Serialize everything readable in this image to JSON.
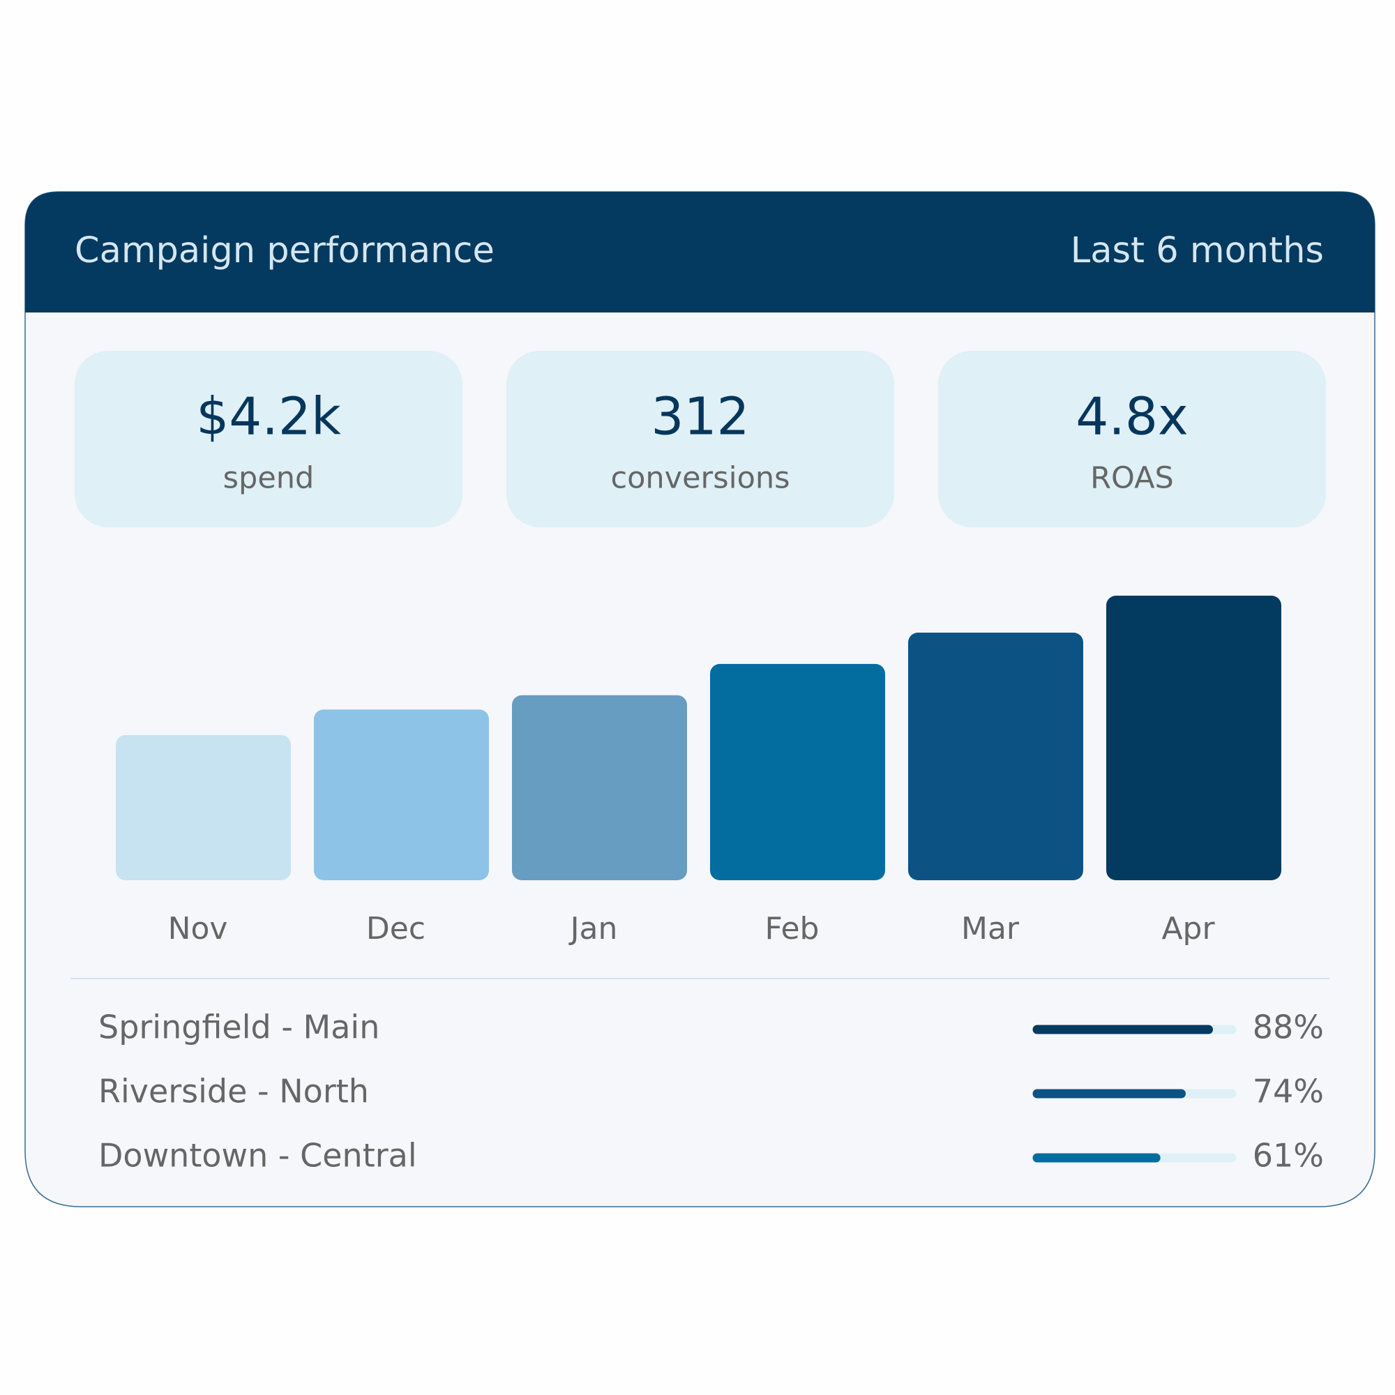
{
  "header": {
    "title": "Campaign performance",
    "period": "Last 6 months"
  },
  "kpis": [
    {
      "value": "$4.2k",
      "label": "spend"
    },
    {
      "value": "312",
      "label": "conversions"
    },
    {
      "value": "4.8x",
      "label": "ROAS"
    }
  ],
  "chart_data": {
    "type": "bar",
    "categories": [
      "Nov",
      "Dec",
      "Jan",
      "Feb",
      "Mar",
      "Apr"
    ],
    "values": [
      51,
      60,
      65,
      76,
      87,
      100
    ],
    "colors": [
      "#c7e2f0",
      "#8cc3e7",
      "#669dc1",
      "#046d9f",
      "#0c5383",
      "#033a5f"
    ]
  },
  "locations": {
    "names": [
      "Springfield - Main",
      "Riverside - North",
      "Downtown - Central"
    ],
    "values": [
      88,
      74,
      61
    ],
    "value_labels": [
      "88%",
      "74%",
      "61%"
    ],
    "colors": [
      "#033a5f",
      "#0c5383",
      "#046d9f"
    ]
  }
}
